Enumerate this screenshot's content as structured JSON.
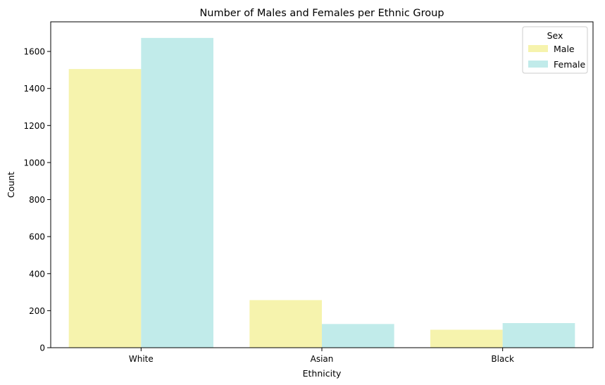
{
  "chart_data": {
    "type": "bar",
    "title": "Number of Males and Females per Ethnic Group",
    "xlabel": "Ethnicity",
    "ylabel": "Count",
    "categories": [
      "White",
      "Asian",
      "Black"
    ],
    "series": [
      {
        "name": "Male",
        "values": [
          1505,
          257,
          97
        ],
        "color": "#f6f3ad"
      },
      {
        "name": "Female",
        "values": [
          1673,
          128,
          133
        ],
        "color": "#c1ebea"
      }
    ],
    "ylim": [
      0,
      1760
    ],
    "yticks": [
      0,
      200,
      400,
      600,
      800,
      1000,
      1200,
      1400,
      1600
    ],
    "grid": false,
    "legend": {
      "title": "Sex",
      "placement": "top-right"
    }
  }
}
